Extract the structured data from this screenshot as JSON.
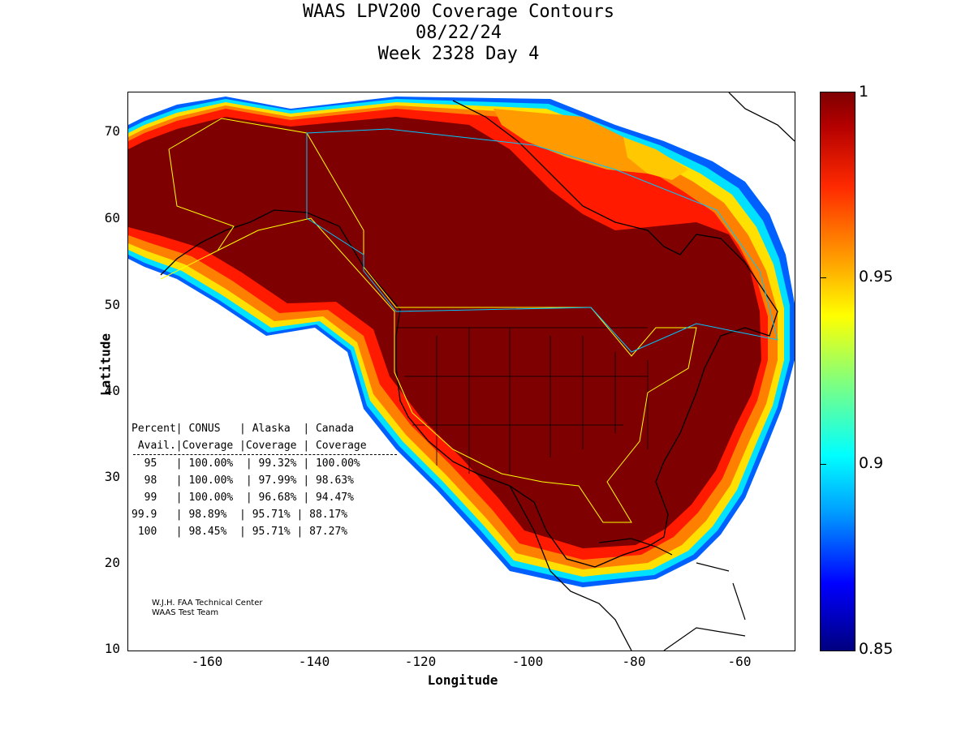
{
  "title": {
    "line1": "WAAS LPV200 Coverage Contours",
    "line2": "08/22/24",
    "line3": "Week 2328 Day 4"
  },
  "axes": {
    "xlabel": "Longitude",
    "ylabel": "Latitude",
    "xticks": [
      "-160",
      "-140",
      "-120",
      "-100",
      "-80",
      "-60"
    ],
    "yticks": [
      "70",
      "60",
      "50",
      "40",
      "30",
      "20",
      "10"
    ],
    "xlim": [
      -175,
      -50
    ],
    "ylim": [
      10,
      75
    ]
  },
  "colorbar": {
    "ticks": [
      "1",
      "0.95",
      "0.9",
      "0.85"
    ],
    "range": [
      0.85,
      1
    ],
    "colormap": "jet"
  },
  "stats_table": {
    "header1": "Percent| CONUS   | Alaska  | Canada",
    "header2": " Avail.|Coverage |Coverage | Coverage",
    "rows": [
      "  95   | 100.00%  | 99.32% | 100.00%",
      "  98   | 100.00%  | 97.99% | 98.63%",
      "  99   | 100.00%  | 96.68% | 94.47%",
      "99.9   | 98.89%  | 95.71% | 88.17%",
      " 100   | 98.45%  | 95.71% | 87.27%"
    ]
  },
  "credit": {
    "line1": "W.J.H. FAA Technical Center",
    "line2": "WAAS Test Team"
  },
  "colors": {
    "full_coverage": "#7f0000",
    "service_boundary_us": "#ffff00",
    "service_boundary_ca": "#00c8ff"
  }
}
